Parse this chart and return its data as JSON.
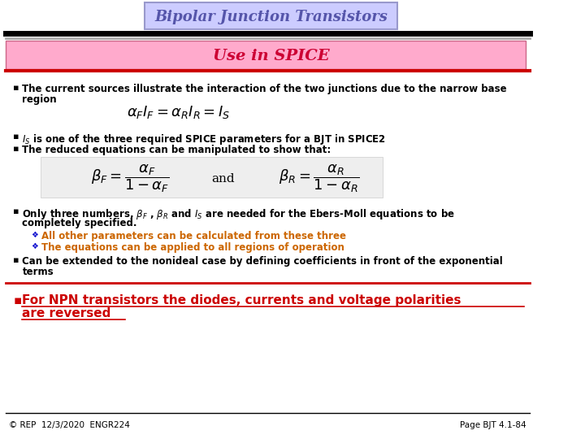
{
  "title": "Bipolar Junction Transistors",
  "subtitle": "Use in SPICE",
  "title_bg": "#ccccff",
  "title_border": "#9999cc",
  "subtitle_bg": "#ffaacc",
  "subtitle_text_color": "#cc0033",
  "slide_bg": "#ffffff",
  "bullet_color": "#000000",
  "red_color": "#cc0000",
  "orange_color": "#cc6600",
  "bullet_symbol": "▪",
  "sub_bullet": "❖",
  "footer_left": "© REP  12/3/2020  ENGR224",
  "footer_right": "Page BJT 4.1-84"
}
